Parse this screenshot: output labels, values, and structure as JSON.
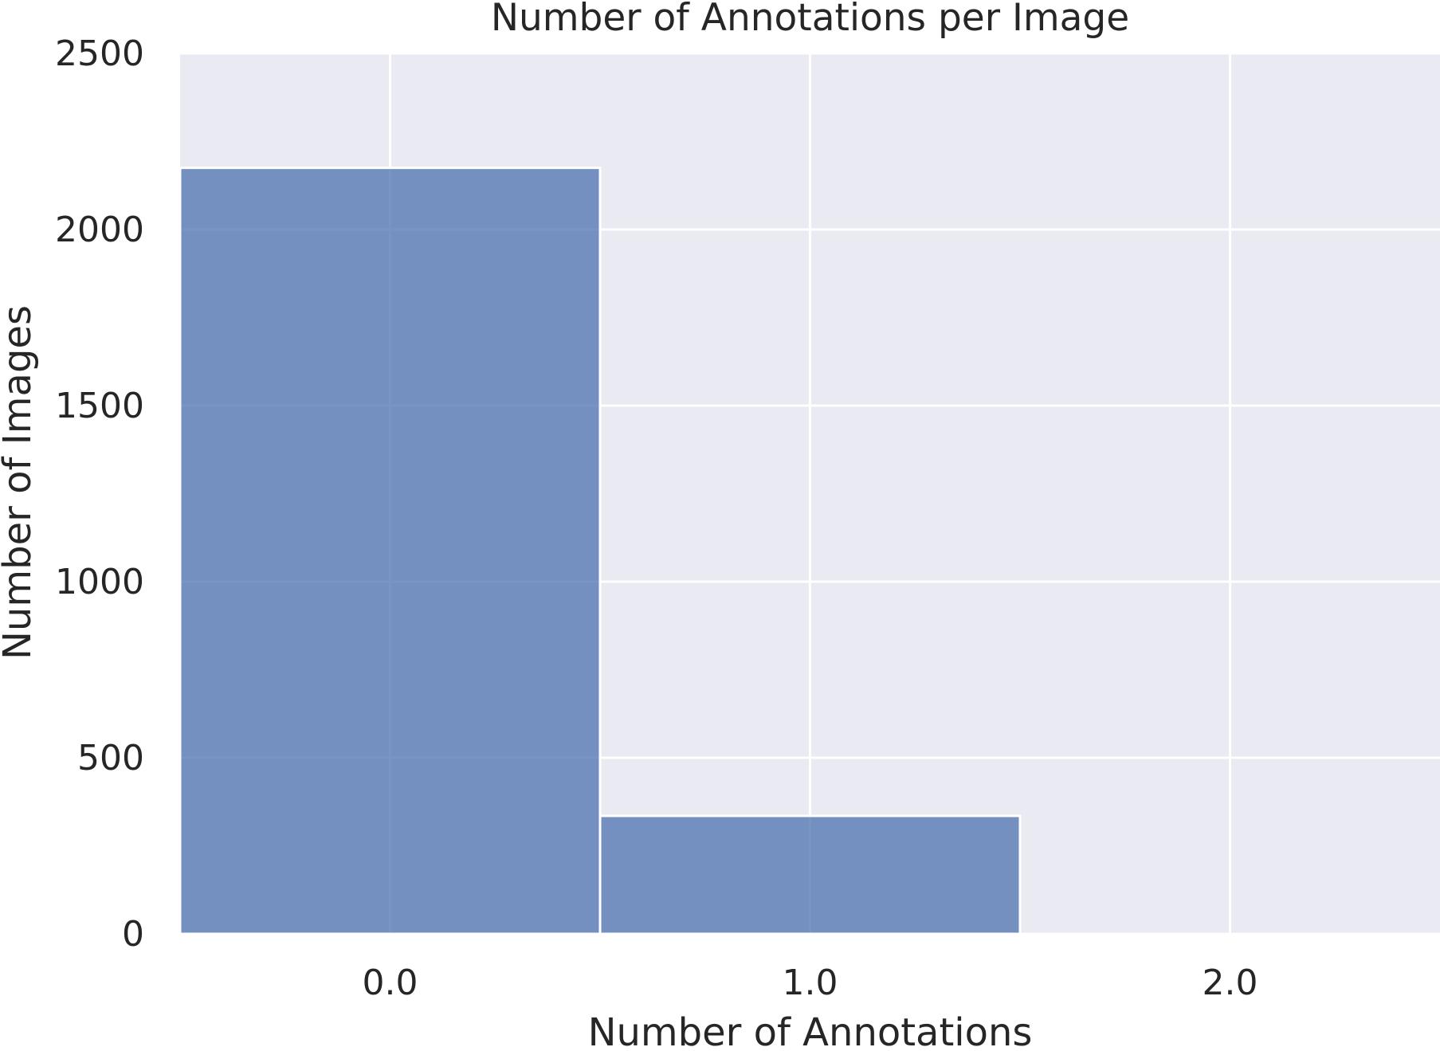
{
  "chart_data": {
    "type": "bar",
    "title": "Number of Annotations per Image",
    "xlabel": "Number of Annotations",
    "ylabel": "Number of Images",
    "categories": [
      "0.0",
      "1.0",
      "2.0"
    ],
    "x_values": [
      0,
      1,
      2
    ],
    "values": [
      2175,
      335,
      0
    ],
    "xlim": [
      -0.5,
      2.5
    ],
    "ylim": [
      0,
      2500
    ],
    "y_ticks": [
      0,
      500,
      1000,
      1500,
      2000,
      2500
    ],
    "grid": true,
    "legend": "none",
    "colors": {
      "bar": "#4c72b0",
      "plot_background": "#eaeaf2",
      "grid": "#ffffff",
      "text": "#262626"
    }
  }
}
